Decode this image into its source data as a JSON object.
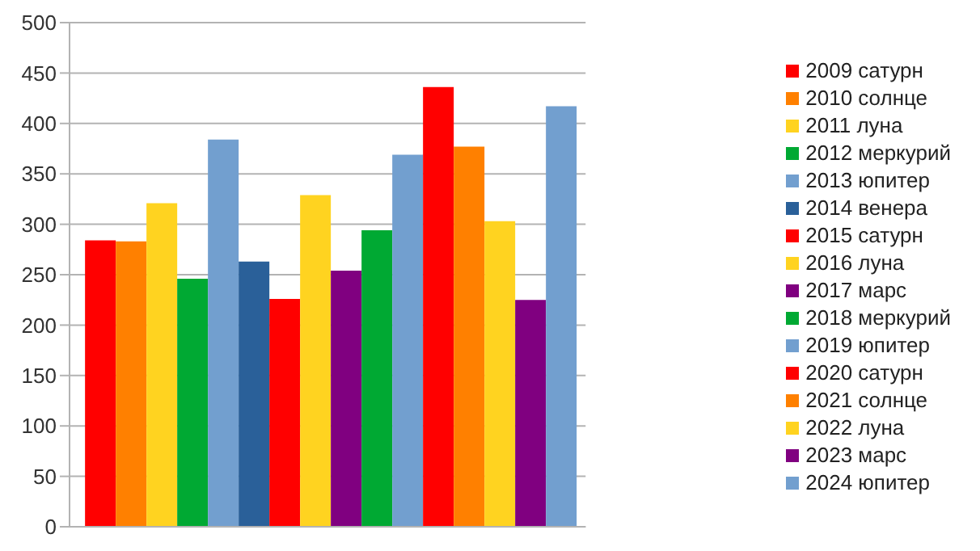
{
  "chart_data": {
    "type": "bar",
    "categories": [
      null
    ],
    "series": [
      {
        "name": "2009 сатурн",
        "color": "#ff0000",
        "values": [
          284
        ]
      },
      {
        "name": "2010 солнце",
        "color": "#ff8000",
        "values": [
          283
        ]
      },
      {
        "name": "2011 луна",
        "color": "#ffd320",
        "values": [
          321
        ]
      },
      {
        "name": "2012 меркурий",
        "color": "#00a933",
        "values": [
          246
        ]
      },
      {
        "name": "2013 юпитер",
        "color": "#729fcf",
        "values": [
          384
        ]
      },
      {
        "name": "2014 венера",
        "color": "#2a6099",
        "values": [
          263
        ]
      },
      {
        "name": "2015 сатурн",
        "color": "#ff0000",
        "values": [
          226
        ]
      },
      {
        "name": "2016 луна",
        "color": "#ffd320",
        "values": [
          329
        ]
      },
      {
        "name": "2017 марс",
        "color": "#800080",
        "values": [
          254
        ]
      },
      {
        "name": "2018 меркурий",
        "color": "#00a933",
        "values": [
          294
        ]
      },
      {
        "name": "2019 юпитер",
        "color": "#729fcf",
        "values": [
          369
        ]
      },
      {
        "name": "2020 сатурн",
        "color": "#ff0000",
        "values": [
          436
        ]
      },
      {
        "name": "2021 солнце",
        "color": "#ff8000",
        "values": [
          377
        ]
      },
      {
        "name": "2022 луна",
        "color": "#ffd320",
        "values": [
          303
        ]
      },
      {
        "name": "2023 марс",
        "color": "#800080",
        "values": [
          225
        ]
      },
      {
        "name": "2024 юпитер",
        "color": "#729fcf",
        "values": [
          417
        ]
      }
    ],
    "ylim": [
      0,
      500
    ],
    "yticks": [
      0,
      50,
      100,
      150,
      200,
      250,
      300,
      350,
      400,
      450,
      500
    ],
    "grid": "y",
    "legend": "right"
  }
}
